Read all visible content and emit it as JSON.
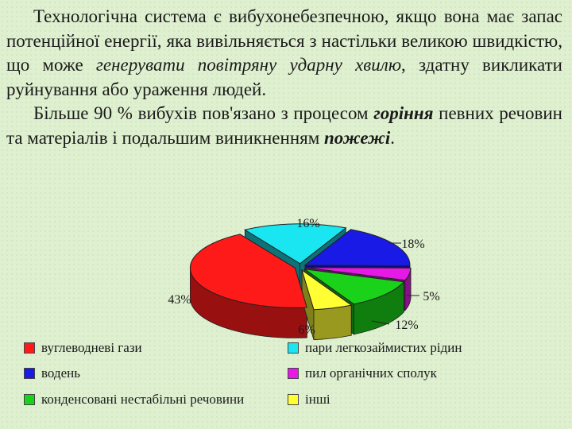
{
  "paragraph1": {
    "part1": "Технологічна система є вибухонебезпечною, якщо вона має запас потенційної енергії, яка вивільняється з настільки великою швидкістю, що може ",
    "emph": "генерувати повітряну ударну хвилю",
    "part2": ", здатну викликати руйнування або ураження людей."
  },
  "paragraph2": {
    "part1": "Більше 90 % вибухів пов'язано з процесом ",
    "emph1": "горіння",
    "part2": " певних речовин та матеріалів і подальшим виникненням ",
    "emph2": "пожежі",
    "part3": "."
  },
  "chart_data": {
    "type": "pie",
    "style": "3d-exploded",
    "slices": [
      {
        "label": "вуглеводневі гази",
        "value": 43,
        "pct_label": "43%",
        "color": "#ff1a1a"
      },
      {
        "label": "пари легкозаймистих рідин",
        "value": 16,
        "pct_label": "16%",
        "color": "#19e6f0"
      },
      {
        "label": "водень",
        "value": 18,
        "pct_label": "18%",
        "color": "#1a1ae6"
      },
      {
        "label": "пил органічних сполук",
        "value": 5,
        "pct_label": "5%",
        "color": "#e619e6"
      },
      {
        "label": "конденсовані нестабільні речовини",
        "value": 12,
        "pct_label": "12%",
        "color": "#19d219"
      },
      {
        "label": "інші",
        "value": 6,
        "pct_label": "6%",
        "color": "#ffff33"
      }
    ]
  }
}
